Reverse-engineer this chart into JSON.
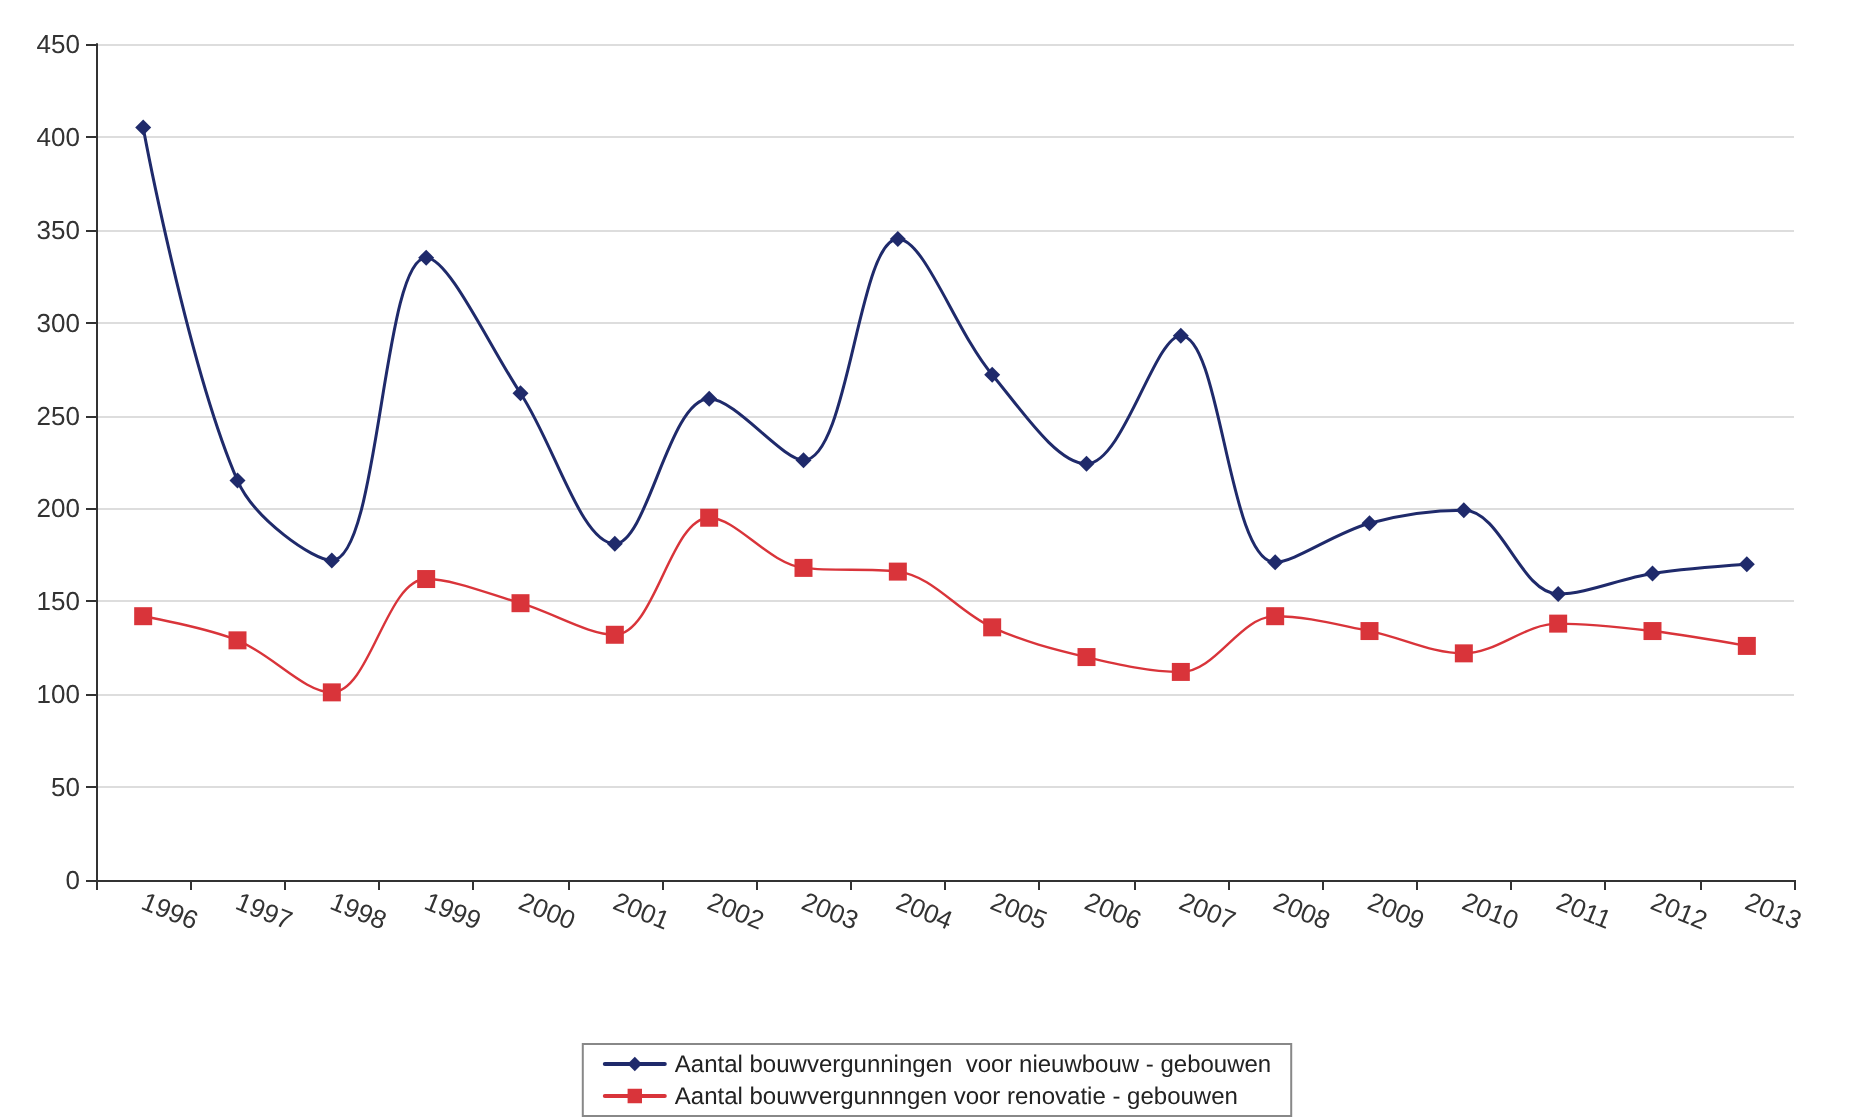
{
  "chart_data": {
    "type": "line",
    "categories": [
      "1996",
      "1997",
      "1998",
      "1999",
      "2000",
      "2001",
      "2002",
      "2003",
      "2004",
      "2005",
      "2006",
      "2007",
      "2008",
      "2009",
      "2010",
      "2011",
      "2012",
      "2013"
    ],
    "series": [
      {
        "name": "Aantal bouwvergunningen  voor nieuwbouw - gebouwen",
        "color": "#1f2a6b",
        "marker": "diamond",
        "values": [
          405,
          215,
          172,
          335,
          262,
          181,
          259,
          226,
          345,
          272,
          224,
          293,
          171,
          192,
          199,
          154,
          165,
          170
        ]
      },
      {
        "name": "Aantal bouwvergunnngen voor renovatie - gebouwen",
        "color": "#d9343a",
        "marker": "square",
        "values": [
          142,
          129,
          101,
          162,
          149,
          132,
          195,
          168,
          166,
          136,
          120,
          112,
          142,
          134,
          122,
          138,
          134,
          126
        ]
      }
    ],
    "ylim": [
      0,
      450
    ],
    "yticks": [
      0,
      50,
      100,
      150,
      200,
      250,
      300,
      350,
      400,
      450
    ],
    "grid": "y",
    "legend": "bottom",
    "line_style": "solid"
  }
}
